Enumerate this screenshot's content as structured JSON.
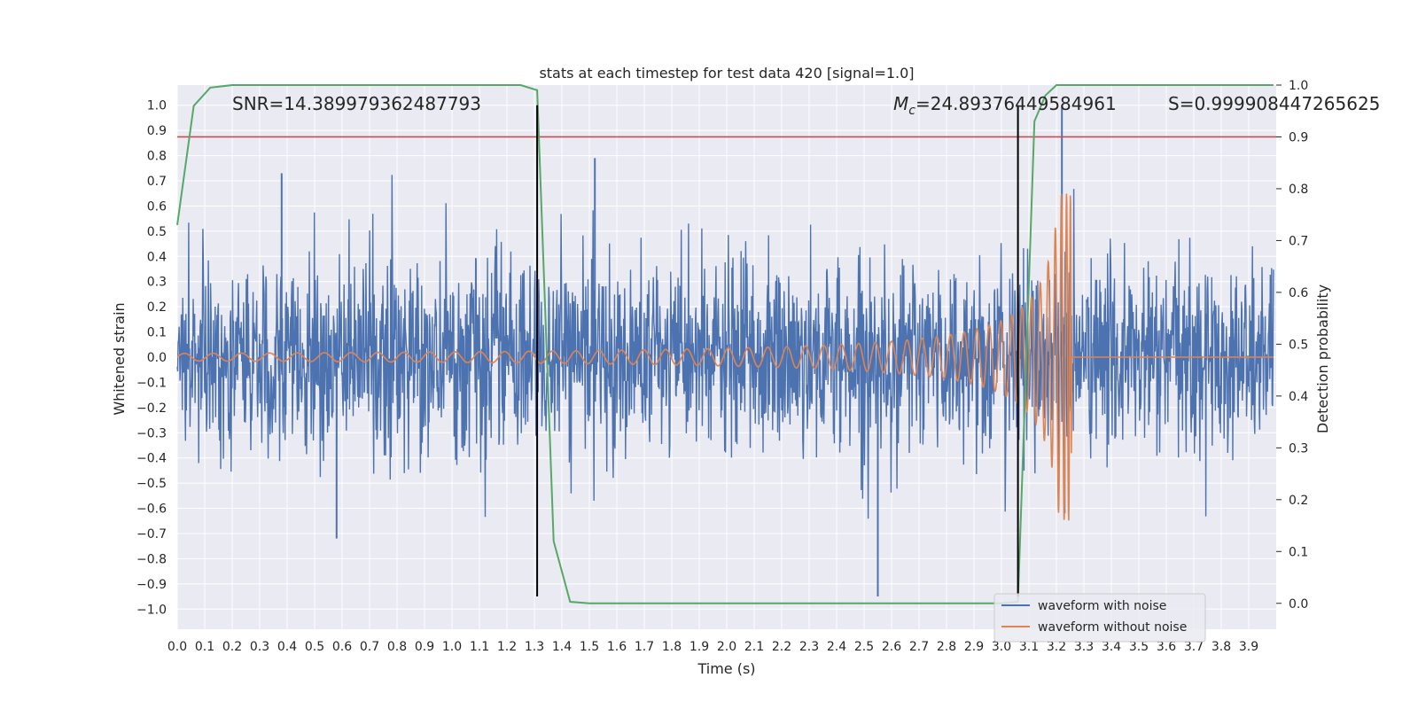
{
  "chart_data": {
    "type": "line",
    "title": "stats at each timestep for test data 420 [signal=1.0]",
    "xlabel": "Time (s)",
    "ylabel": "Whitened strain",
    "ylabel_right": "Detection probability",
    "xlim": [
      0.0,
      4.0
    ],
    "ylim": [
      -1.08,
      1.08
    ],
    "ylim_right": [
      -0.05,
      1.0
    ],
    "x_ticks": [
      "0.0",
      "0.1",
      "0.2",
      "0.3",
      "0.4",
      "0.5",
      "0.6",
      "0.7",
      "0.8",
      "0.9",
      "1.0",
      "1.1",
      "1.2",
      "1.3",
      "1.4",
      "1.5",
      "1.6",
      "1.7",
      "1.8",
      "1.9",
      "2.0",
      "2.1",
      "2.2",
      "2.3",
      "2.4",
      "2.5",
      "2.6",
      "2.7",
      "2.8",
      "2.9",
      "3.0",
      "3.1",
      "3.2",
      "3.3",
      "3.4",
      "3.5",
      "3.6",
      "3.7",
      "3.8",
      "3.9"
    ],
    "y_ticks": [
      "1.0",
      "0.9",
      "0.8",
      "0.7",
      "0.6",
      "0.5",
      "0.4",
      "0.3",
      "0.2",
      "0.1",
      "0.0",
      "−0.1",
      "−0.2",
      "−0.3",
      "−0.4",
      "−0.5",
      "−0.6",
      "−0.7",
      "−0.8",
      "−0.9",
      "−1.0"
    ],
    "y_right_ticks": [
      "1.0",
      "0.9",
      "0.8",
      "0.7",
      "0.6",
      "0.5",
      "0.4",
      "0.3",
      "0.2",
      "0.1",
      "0.0"
    ],
    "grid": true,
    "legend_position": "bottom-right",
    "annotations": {
      "snr": "SNR=14.389979362487793",
      "mc_symbol": "M",
      "mc_sub": "c",
      "mc_value": "=24.89376449584961",
      "s_value": "S=0.999908447265625"
    },
    "threshold": {
      "value": 0.9,
      "axis": "right",
      "color": "#c44e52"
    },
    "vertical_markers": [
      {
        "x": 1.31,
        "y_from": -0.95,
        "y_to": 1.0
      },
      {
        "x": 3.06,
        "y_from": -0.95,
        "y_to": 1.0
      }
    ],
    "series": [
      {
        "name": "waveform with noise",
        "color": "#4c72b0",
        "description_values": "dense noisy strain, range roughly -0.95 to 1.0",
        "spikes": [
          [
            0.38,
            0.73
          ],
          [
            0.58,
            -0.72
          ],
          [
            1.52,
            0.79
          ],
          [
            2.55,
            -0.95
          ],
          [
            3.22,
            1.0
          ],
          [
            3.23,
            -0.62
          ]
        ]
      },
      {
        "name": "waveform without noise",
        "color": "#dd8452",
        "chirp_start_amplitude": 0.015,
        "chirp_peak_time": 3.24,
        "chirp_peak_amplitude": 0.65,
        "after_merger": 0.0
      },
      {
        "name": "detection probability",
        "axis": "right",
        "color": "#55a868",
        "x": [
          0.0,
          0.06,
          0.12,
          0.2,
          0.4,
          1.0,
          1.25,
          1.31,
          1.37,
          1.43,
          1.5,
          2.0,
          2.5,
          2.9,
          3.0,
          3.06,
          3.12,
          3.16,
          3.2,
          3.3,
          3.5,
          3.8,
          3.99
        ],
        "y": [
          0.73,
          0.96,
          0.995,
          1.0,
          1.0,
          1.0,
          1.0,
          0.99,
          0.12,
          0.003,
          0.0,
          0.0,
          0.0,
          0.0,
          0.0,
          0.003,
          0.93,
          0.98,
          1.0,
          1.0,
          1.0,
          1.0,
          1.0
        ]
      }
    ]
  }
}
